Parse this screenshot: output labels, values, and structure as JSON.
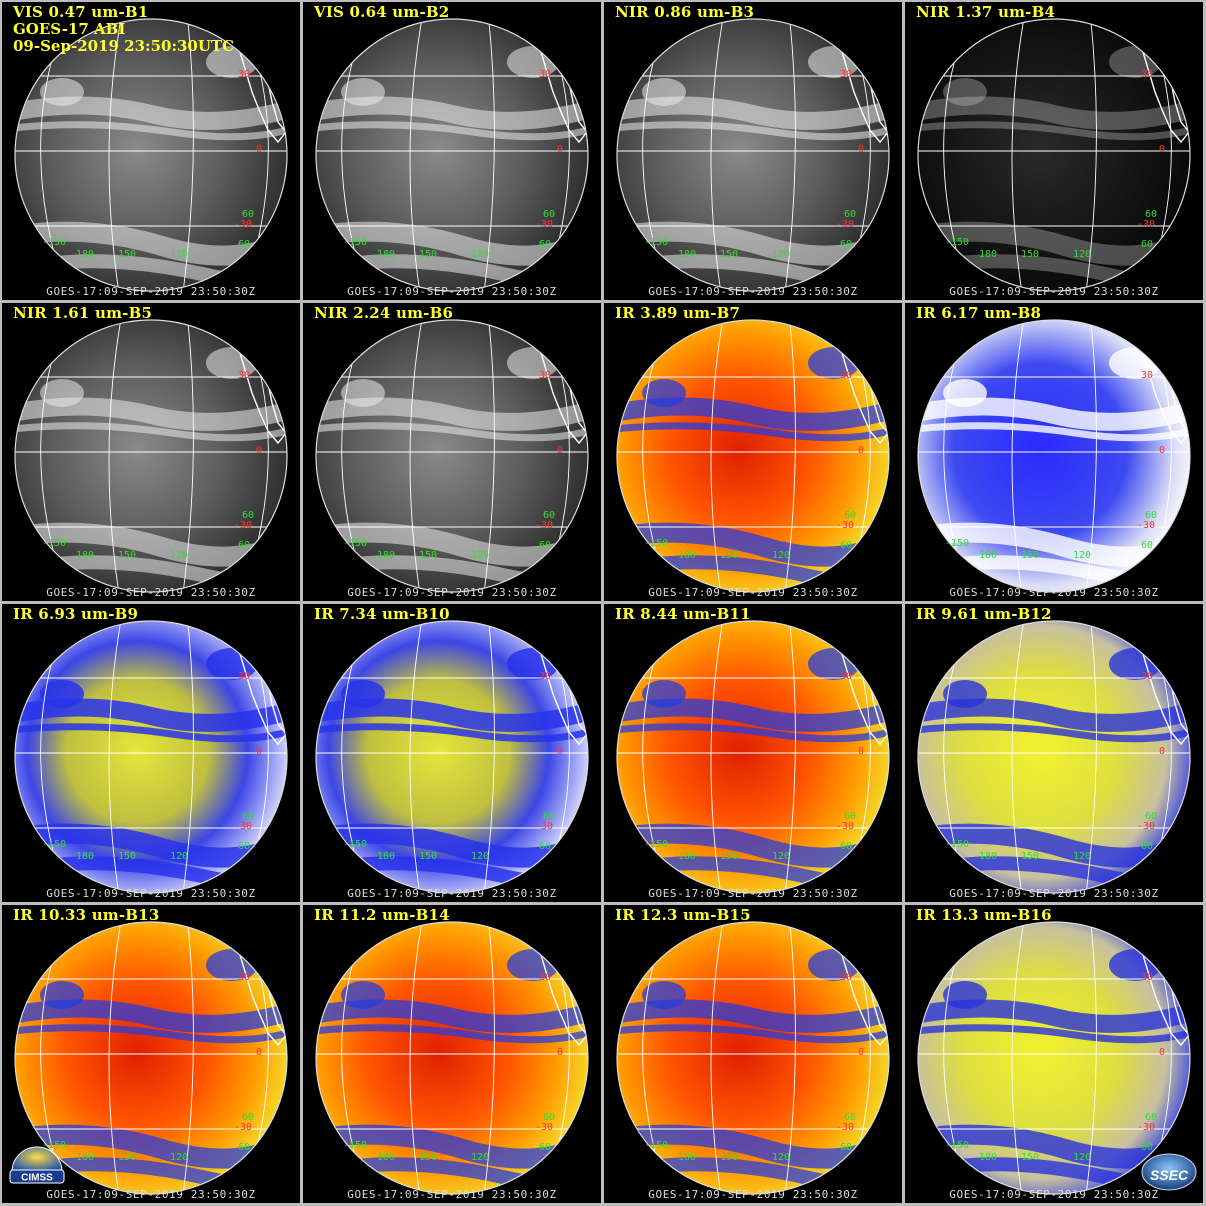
{
  "header": {
    "satellite": "GOES-17 ABI",
    "datetime": "09-Sep-2019 23:50:30UTC"
  },
  "footer_text": "GOES-17:09-SEP-2019 23:50:30Z",
  "lat_labels": [
    "30",
    "0",
    "-30",
    "60"
  ],
  "lon_labels": [
    "-150",
    "180",
    "150",
    "120",
    "60"
  ],
  "panels": [
    {
      "title": "VIS 0.47 um-B1",
      "palette": "gray"
    },
    {
      "title": "VIS 0.64 um-B2",
      "palette": "gray"
    },
    {
      "title": "NIR 0.86 um-B3",
      "palette": "gray"
    },
    {
      "title": "NIR 1.37 um-B4",
      "palette": "dark"
    },
    {
      "title": "NIR 1.61 um-B5",
      "palette": "gray"
    },
    {
      "title": "NIR 2.24 um-B6",
      "palette": "gray"
    },
    {
      "title": "IR 3.89 um-B7",
      "palette": "red"
    },
    {
      "title": "IR 6.17 um-B8",
      "palette": "bluewhite"
    },
    {
      "title": "IR 6.93 um-B9",
      "palette": "blueyellow"
    },
    {
      "title": "IR 7.34 um-B10",
      "palette": "blueyellow"
    },
    {
      "title": "IR 8.44 um-B11",
      "palette": "red"
    },
    {
      "title": "IR 9.61 um-B12",
      "palette": "yellow"
    },
    {
      "title": "IR 10.33 um-B13",
      "palette": "red"
    },
    {
      "title": "IR 11.2 um-B14",
      "palette": "red"
    },
    {
      "title": "IR 12.3 um-B15",
      "palette": "red"
    },
    {
      "title": "IR 13.3 um-B16",
      "palette": "yellow"
    }
  ],
  "logos": {
    "left": "CIMSS",
    "right": "SSEC"
  },
  "colors": {
    "title": "#ffff33",
    "lat_label": "#ff3333",
    "lon_label": "#33dd33",
    "grid": "#ffffff"
  }
}
